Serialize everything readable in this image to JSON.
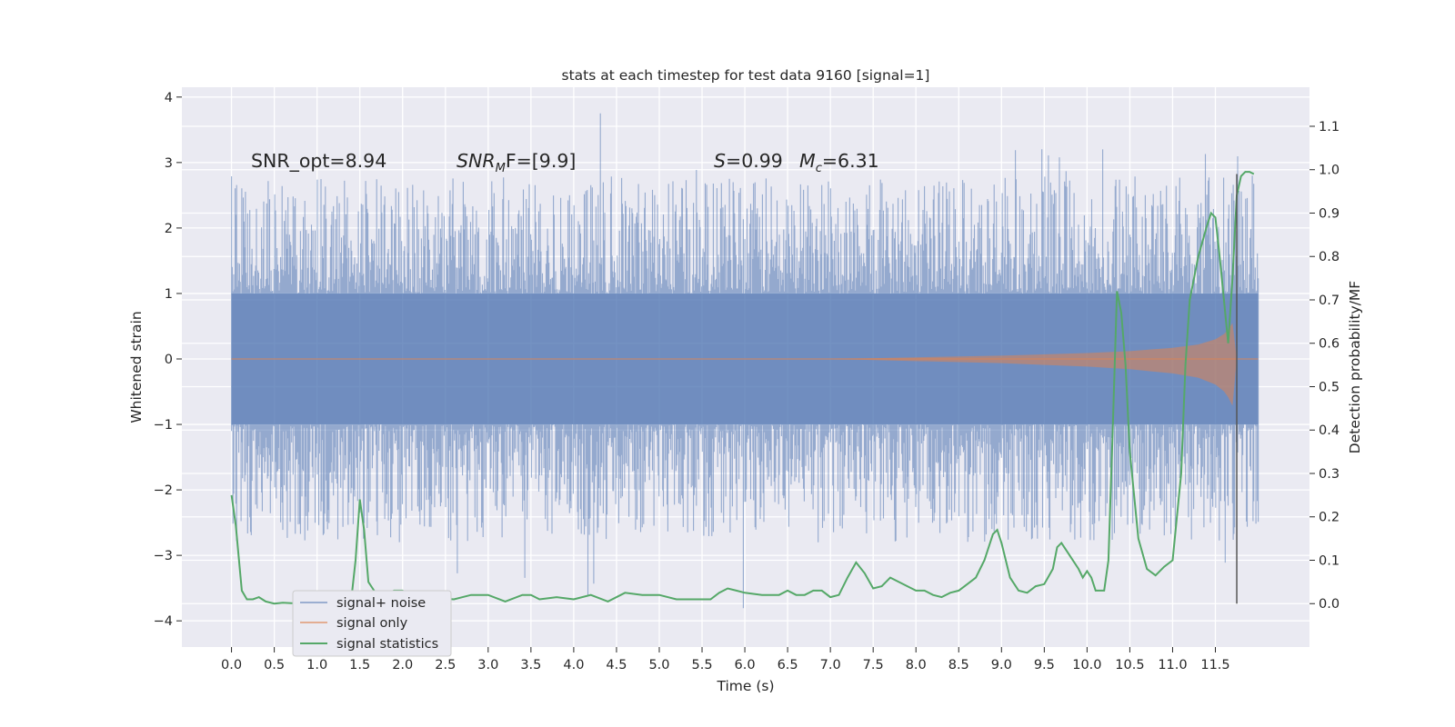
{
  "chart_data": {
    "type": "line",
    "title": "stats at each timestep for test data 9160 [signal=1]",
    "xlabel": "Time (s)",
    "ylabel": "Whitened strain",
    "y2label": "Detection probability/MF",
    "xlim": [
      -0.58,
      12.6
    ],
    "ylim": [
      -4.4,
      4.15
    ],
    "y2lim": [
      -0.1,
      1.19
    ],
    "xticks": [
      0.0,
      0.5,
      1.0,
      1.5,
      2.0,
      2.5,
      3.0,
      3.5,
      4.0,
      4.5,
      5.0,
      5.5,
      6.0,
      6.5,
      7.0,
      7.5,
      8.0,
      8.5,
      9.0,
      9.5,
      10.0,
      10.5,
      11.0,
      11.5
    ],
    "xtick_labels": [
      "0.0",
      "0.5",
      "1.0",
      "1.5",
      "2.0",
      "2.5",
      "3.0",
      "3.5",
      "4.0",
      "4.5",
      "5.0",
      "5.5",
      "6.0",
      "6.5",
      "7.0",
      "7.5",
      "8.0",
      "8.5",
      "9.0",
      "9.5",
      "10.0",
      "10.5",
      "11.0",
      "11.5"
    ],
    "yticks": [
      -4,
      -3,
      -2,
      -1,
      0,
      1,
      2,
      3,
      4
    ],
    "ytick_labels": [
      "−4",
      "−3",
      "−2",
      "−1",
      "0",
      "1",
      "2",
      "3",
      "4"
    ],
    "y2ticks": [
      0.0,
      0.1,
      0.2,
      0.3,
      0.4,
      0.5,
      0.6,
      0.7,
      0.8,
      0.9,
      1.0,
      1.1
    ],
    "y2tick_labels": [
      "0.0",
      "0.1",
      "0.2",
      "0.3",
      "0.4",
      "0.5",
      "0.6",
      "0.7",
      "0.8",
      "0.9",
      "1.0",
      "1.1"
    ],
    "grid": true,
    "legend_position": "lower-left",
    "legend": [
      {
        "label": "signal+ noise",
        "color": "#4c72b0"
      },
      {
        "label": "signal only",
        "color": "#dd8452"
      },
      {
        "label": "signal statistics",
        "color": "#55a868"
      }
    ],
    "annotations": {
      "snr_opt": "SNR_opt=8.94",
      "snr_mf": {
        "base": "SNR",
        "sub": "M",
        "rest": "F=[9.9]"
      },
      "s_value": {
        "sym": "S",
        "rest": "=0.99"
      },
      "mc_value": {
        "sym": "M",
        "sub": "c",
        "rest": "=6.31"
      }
    },
    "marker_line": {
      "x": 11.75,
      "y2_from": 0.0,
      "y2_to": 0.99
    },
    "noise": {
      "t_start": 0.0,
      "t_end": 12.0,
      "core_amplitude": 1.0,
      "envelope": 2.2
    },
    "signal_envelope": {
      "t": [
        0,
        7.0,
        8.0,
        9.0,
        10.0,
        10.5,
        11.0,
        11.3,
        11.5,
        11.6,
        11.65,
        11.7,
        11.75
      ],
      "amp": [
        0.0,
        0.0,
        0.025,
        0.05,
        0.09,
        0.12,
        0.17,
        0.22,
        0.3,
        0.38,
        0.45,
        0.55,
        0.0
      ]
    },
    "series": [
      {
        "name": "signal statistics",
        "axis": "right",
        "color": "#55a868",
        "x": [
          0.0,
          0.05,
          0.12,
          0.18,
          0.25,
          0.32,
          0.4,
          0.5,
          0.6,
          0.7,
          0.8,
          0.9,
          1.0,
          1.1,
          1.2,
          1.3,
          1.4,
          1.45,
          1.5,
          1.55,
          1.6,
          1.65,
          1.7,
          1.8,
          1.9,
          2.0,
          2.1,
          2.2,
          2.4,
          2.6,
          2.8,
          3.0,
          3.2,
          3.4,
          3.5,
          3.6,
          3.8,
          4.0,
          4.2,
          4.4,
          4.6,
          4.8,
          5.0,
          5.2,
          5.4,
          5.6,
          5.7,
          5.8,
          5.9,
          6.0,
          6.2,
          6.4,
          6.5,
          6.6,
          6.7,
          6.8,
          6.9,
          7.0,
          7.1,
          7.2,
          7.3,
          7.4,
          7.5,
          7.6,
          7.7,
          7.8,
          7.9,
          8.0,
          8.1,
          8.2,
          8.3,
          8.4,
          8.5,
          8.6,
          8.7,
          8.8,
          8.9,
          8.95,
          9.0,
          9.1,
          9.2,
          9.3,
          9.4,
          9.5,
          9.6,
          9.65,
          9.7,
          9.8,
          9.9,
          9.95,
          10.0,
          10.05,
          10.1,
          10.2,
          10.25,
          10.3,
          10.35,
          10.4,
          10.45,
          10.5,
          10.6,
          10.7,
          10.8,
          10.9,
          11.0,
          11.1,
          11.15,
          11.2,
          11.3,
          11.4,
          11.45,
          11.5,
          11.55,
          11.6,
          11.65,
          11.7,
          11.75,
          11.8,
          11.85,
          11.9,
          11.95
        ],
        "y": [
          0.25,
          0.18,
          0.03,
          0.01,
          0.01,
          0.015,
          0.005,
          0.0,
          0.002,
          0.001,
          0.001,
          0.005,
          0.005,
          0.005,
          0.007,
          0.002,
          0.01,
          0.1,
          0.24,
          0.17,
          0.05,
          0.035,
          0.02,
          0.02,
          0.03,
          0.03,
          0.015,
          0.01,
          0.012,
          0.01,
          0.02,
          0.02,
          0.005,
          0.02,
          0.02,
          0.01,
          0.015,
          0.01,
          0.02,
          0.005,
          0.025,
          0.02,
          0.02,
          0.01,
          0.01,
          0.01,
          0.025,
          0.035,
          0.03,
          0.025,
          0.02,
          0.02,
          0.03,
          0.02,
          0.02,
          0.03,
          0.03,
          0.015,
          0.02,
          0.06,
          0.095,
          0.07,
          0.035,
          0.04,
          0.06,
          0.05,
          0.04,
          0.03,
          0.03,
          0.02,
          0.015,
          0.025,
          0.03,
          0.045,
          0.06,
          0.1,
          0.16,
          0.17,
          0.14,
          0.06,
          0.03,
          0.025,
          0.04,
          0.045,
          0.08,
          0.13,
          0.14,
          0.11,
          0.08,
          0.06,
          0.075,
          0.06,
          0.03,
          0.03,
          0.1,
          0.4,
          0.72,
          0.67,
          0.55,
          0.35,
          0.15,
          0.08,
          0.065,
          0.085,
          0.1,
          0.3,
          0.55,
          0.7,
          0.8,
          0.87,
          0.9,
          0.89,
          0.8,
          0.7,
          0.6,
          0.75,
          0.94,
          0.985,
          0.995,
          0.995,
          0.99
        ],
        "values_note": "values read off the right axis"
      }
    ]
  }
}
